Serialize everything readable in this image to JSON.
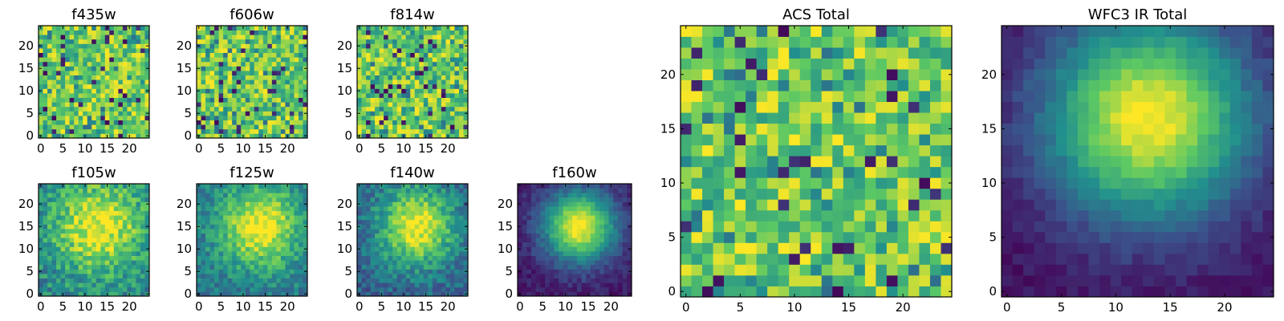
{
  "colors": {
    "background": "#ffffff",
    "frame": "#000000",
    "colormap": [
      "#440154",
      "#3b528b",
      "#21908d",
      "#5dc963",
      "#fde725"
    ]
  },
  "chart_data": [
    {
      "type": "heatmap",
      "title": "f435w",
      "pattern": "noise",
      "seed": 11,
      "grid": [
        25,
        25
      ],
      "xlim": [
        0,
        25
      ],
      "ylim": [
        0,
        25
      ],
      "xticks": [
        "0",
        "5",
        "10",
        "15",
        "20"
      ],
      "yticks": [
        "0",
        "5",
        "10",
        "15",
        "20"
      ]
    },
    {
      "type": "heatmap",
      "title": "f606w",
      "pattern": "noise",
      "seed": 23,
      "grid": [
        25,
        25
      ],
      "xlim": [
        0,
        25
      ],
      "ylim": [
        0,
        25
      ],
      "xticks": [
        "0",
        "5",
        "10",
        "15",
        "20"
      ],
      "yticks": [
        "0",
        "5",
        "10",
        "15",
        "20"
      ]
    },
    {
      "type": "heatmap",
      "title": "f814w",
      "pattern": "noise",
      "seed": 37,
      "grid": [
        25,
        25
      ],
      "xlim": [
        0,
        25
      ],
      "ylim": [
        0,
        25
      ],
      "xticks": [
        "0",
        "5",
        "10",
        "15",
        "20"
      ],
      "yticks": [
        "0",
        "5",
        "10",
        "15",
        "20"
      ]
    },
    {
      "type": "heatmap",
      "title": "f105w",
      "pattern": "blob",
      "seed": 41,
      "grid": [
        25,
        25
      ],
      "peak_x": 13,
      "peak_y": 15,
      "spread": 7,
      "floor": 0.45,
      "noise": 0.35,
      "xlim": [
        0,
        25
      ],
      "ylim": [
        0,
        25
      ],
      "xticks": [
        "0",
        "5",
        "10",
        "15",
        "20"
      ],
      "yticks": [
        "0",
        "5",
        "10",
        "15",
        "20"
      ]
    },
    {
      "type": "heatmap",
      "title": "f125w",
      "pattern": "blob",
      "seed": 53,
      "grid": [
        25,
        25
      ],
      "peak_x": 14,
      "peak_y": 15,
      "spread": 6.5,
      "floor": 0.4,
      "noise": 0.28,
      "xlim": [
        0,
        25
      ],
      "ylim": [
        0,
        25
      ],
      "xticks": [
        "0",
        "5",
        "10",
        "15",
        "20"
      ],
      "yticks": [
        "0",
        "5",
        "10",
        "15",
        "20"
      ]
    },
    {
      "type": "heatmap",
      "title": "f140w",
      "pattern": "blob",
      "seed": 67,
      "grid": [
        25,
        25
      ],
      "peak_x": 13,
      "peak_y": 15,
      "spread": 6,
      "floor": 0.32,
      "noise": 0.28,
      "xlim": [
        0,
        25
      ],
      "ylim": [
        0,
        25
      ],
      "xticks": [
        "0",
        "5",
        "10",
        "15",
        "20"
      ],
      "yticks": [
        "0",
        "5",
        "10",
        "15",
        "20"
      ]
    },
    {
      "type": "heatmap",
      "title": "f160w",
      "pattern": "blob",
      "seed": 79,
      "grid": [
        25,
        25
      ],
      "peak_x": 13,
      "peak_y": 15,
      "spread": 5.5,
      "floor": 0.08,
      "noise": 0.14,
      "xlim": [
        0,
        25
      ],
      "ylim": [
        0,
        25
      ],
      "xticks": [
        "0",
        "5",
        "10",
        "15",
        "20"
      ],
      "yticks": [
        "0",
        "5",
        "10",
        "15",
        "20"
      ]
    },
    {
      "type": "heatmap",
      "title": "ACS Total",
      "pattern": "noise",
      "seed": 97,
      "grid": [
        25,
        25
      ],
      "xlim": [
        0,
        25
      ],
      "ylim": [
        0,
        25
      ],
      "xticks": [
        "0",
        "5",
        "10",
        "15",
        "20"
      ],
      "yticks": [
        "0",
        "5",
        "10",
        "15",
        "20"
      ]
    },
    {
      "type": "heatmap",
      "title": "WFC3 IR Total",
      "pattern": "blob",
      "seed": 101,
      "grid": [
        25,
        25
      ],
      "peak_x": 13,
      "peak_y": 16,
      "spread": 6.5,
      "floor": 0.05,
      "noise": 0.1,
      "xlim": [
        0,
        25
      ],
      "ylim": [
        0,
        25
      ],
      "xticks": [
        "0",
        "5",
        "10",
        "15",
        "20"
      ],
      "yticks": [
        "0",
        "5",
        "10",
        "15",
        "20"
      ]
    }
  ]
}
